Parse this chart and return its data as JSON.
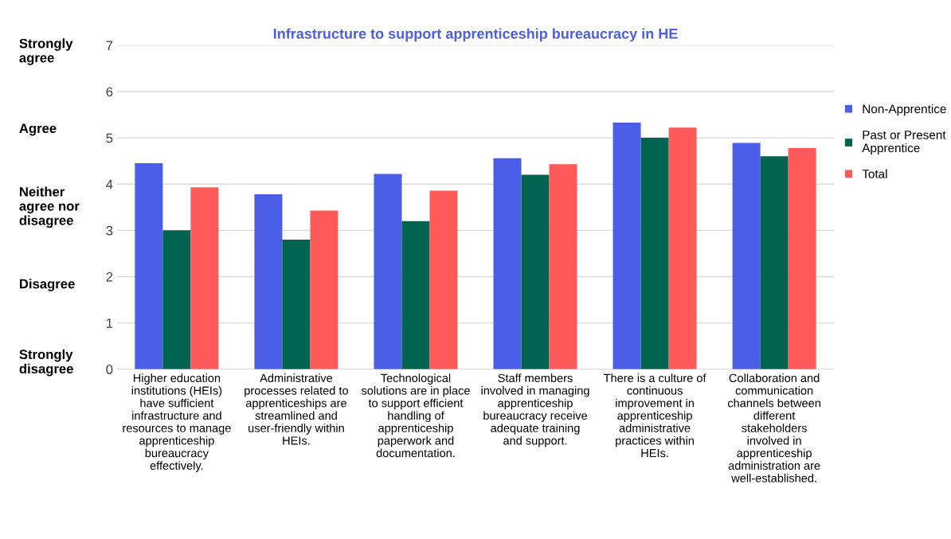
{
  "chart_data": {
    "type": "bar",
    "title": "Infrastructure to support apprenticeship bureaucracy in HE",
    "categories": [
      "Higher education\ninstitutions (HEIs)\nhave sufficient\ninfrastructure and\nresources to manage\napprenticeship\nbureaucracy\neffectively.",
      "Administrative\nprocesses related to\napprenticeships are\nstreamlined and\nuser-friendly within\nHEIs.",
      "Technological\nsolutions are in place\nto support efficient\nhandling of\napprenticeship\npaperwork and\ndocumentation.",
      "Staff members\ninvolved in managing\napprenticeship\nbureaucracy receive\nadequate training\nand support.",
      "There is a culture of\ncontinuous\nimprovement in\napprenticeship\nadministrative\npractices within\nHEIs.",
      "Collaboration and\ncommunication\nchannels between\ndifferent\nstakeholders\ninvolved in\napprenticeship\nadministration are\nwell-established."
    ],
    "series": [
      {
        "name": "Non-Apprentice",
        "color": "#4a5ee8",
        "values": [
          4.45,
          3.78,
          4.22,
          4.56,
          5.33,
          4.89
        ]
      },
      {
        "name": "Past or Present\nApprentice",
        "color": "#006450",
        "values": [
          3.0,
          2.8,
          3.2,
          4.2,
          5.0,
          4.6
        ]
      },
      {
        "name": "Total",
        "color": "#ff5a5a",
        "values": [
          3.93,
          3.43,
          3.86,
          4.43,
          5.22,
          4.78
        ]
      }
    ],
    "ylim": [
      0,
      7
    ],
    "yticks": [
      0,
      1,
      2,
      3,
      4,
      5,
      6,
      7
    ],
    "grid": "y",
    "legend": "right",
    "annotations": [
      "Strongly\nagree",
      "Agree",
      "Neither\nagree nor\ndisagree",
      "Disagree",
      "Strongly\ndisagree"
    ]
  }
}
